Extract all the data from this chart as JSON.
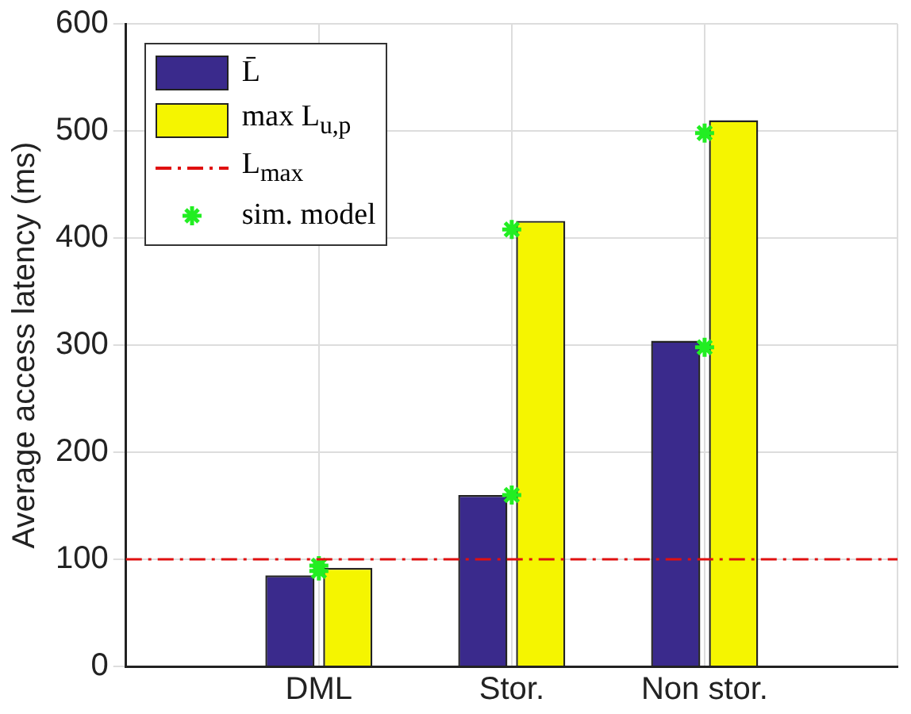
{
  "chart_data": {
    "type": "bar",
    "ylabel": "Average access latency (ms)",
    "categories": [
      "DML",
      "Stor.",
      "Non stor."
    ],
    "series": [
      {
        "name": "L̄",
        "color": "#3a2a8c",
        "values": [
          85,
          160,
          304
        ]
      },
      {
        "name": "max L$_{u,p}$",
        "color": "#f5f500",
        "values": [
          92,
          416,
          510
        ]
      },
      {
        "name": "sim. model",
        "type": "scatter",
        "color": "#22ee22",
        "x": [
          "DML",
          "DML",
          "Stor.",
          "Stor.",
          "Non stor.",
          "Non stor."
        ],
        "values": [
          89,
          94,
          160,
          408,
          298,
          498
        ]
      }
    ],
    "ref_lines": [
      {
        "axis": "y",
        "value": 100,
        "label": "L$_{max}$",
        "color": "#e01010",
        "line_style": "dashdot"
      }
    ],
    "ylim": [
      0,
      600
    ],
    "yticks": [
      0,
      100,
      200,
      300,
      400,
      500,
      600
    ],
    "grid": true,
    "legend": "top left",
    "marker": "cross"
  }
}
